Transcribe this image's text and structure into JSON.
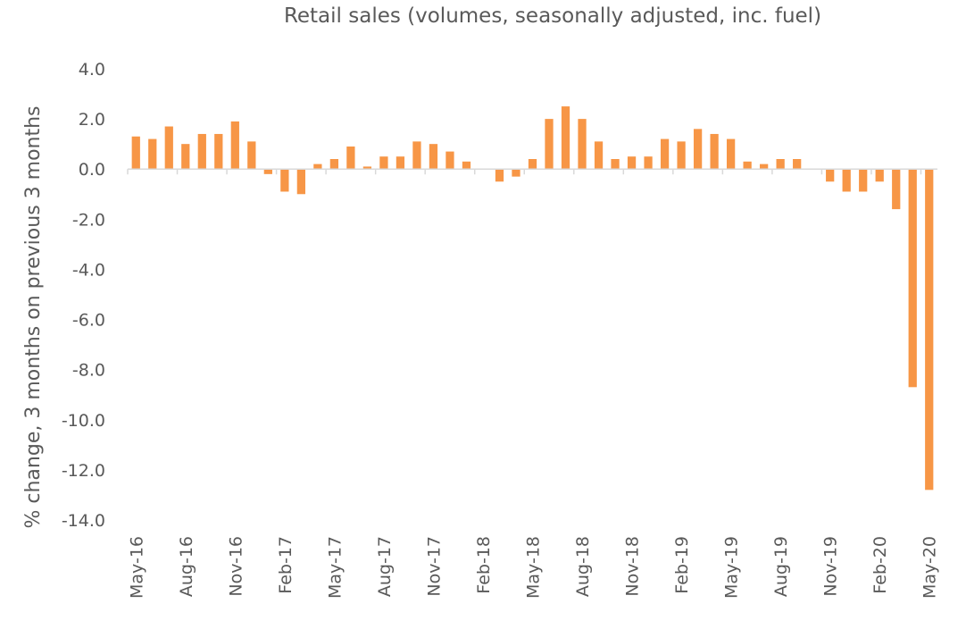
{
  "chart_data": {
    "type": "bar",
    "title": "Retail sales (volumes, seasonally adjusted, inc. fuel)",
    "xlabel": "",
    "ylabel": "% change, 3 months on previous 3 months",
    "ylim": [
      -14,
      4
    ],
    "yticks": [
      "4.0",
      "2.0",
      "0.0",
      "-2.0",
      "-4.0",
      "-6.0",
      "-8.0",
      "-10.0",
      "-12.0",
      "-14.0"
    ],
    "grid": false,
    "color": "#F79646",
    "categories": [
      "May-16",
      "Jun-16",
      "Jul-16",
      "Aug-16",
      "Sep-16",
      "Oct-16",
      "Nov-16",
      "Dec-16",
      "Jan-17",
      "Feb-17",
      "Mar-17",
      "Apr-17",
      "May-17",
      "Jun-17",
      "Jul-17",
      "Aug-17",
      "Sep-17",
      "Oct-17",
      "Nov-17",
      "Dec-17",
      "Jan-18",
      "Feb-18",
      "Mar-18",
      "Apr-18",
      "May-18",
      "Jun-18",
      "Jul-18",
      "Aug-18",
      "Sep-18",
      "Oct-18",
      "Nov-18",
      "Dec-18",
      "Jan-19",
      "Feb-19",
      "Mar-19",
      "Apr-19",
      "May-19",
      "Jun-19",
      "Jul-19",
      "Aug-19",
      "Sep-19",
      "Oct-19",
      "Nov-19",
      "Dec-19",
      "Jan-20",
      "Feb-20",
      "Mar-20",
      "Apr-20",
      "May-20"
    ],
    "visible_tick_labels": [
      "May-16",
      "Aug-16",
      "Nov-16",
      "Feb-17",
      "May-17",
      "Aug-17",
      "Nov-17",
      "Feb-18",
      "May-18",
      "Aug-18",
      "Nov-18",
      "Feb-19",
      "May-19",
      "Aug-19",
      "Nov-19",
      "Feb-20",
      "May-20"
    ],
    "values": [
      1.3,
      1.2,
      1.7,
      1.0,
      1.4,
      1.4,
      1.9,
      1.1,
      -0.2,
      -0.9,
      -1.0,
      0.2,
      0.4,
      0.9,
      0.1,
      0.5,
      0.5,
      1.1,
      1.0,
      0.7,
      0.3,
      0.0,
      -0.5,
      -0.3,
      0.4,
      2.0,
      2.5,
      2.0,
      1.1,
      0.4,
      0.5,
      0.5,
      1.2,
      1.1,
      1.6,
      1.4,
      1.2,
      0.3,
      0.2,
      0.4,
      0.4,
      0.0,
      -0.5,
      -0.9,
      -0.9,
      -0.5,
      -1.6,
      -8.7,
      -12.8
    ]
  }
}
